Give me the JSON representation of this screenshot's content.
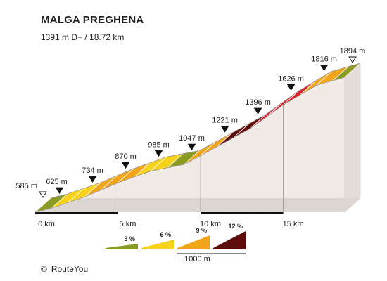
{
  "title": "MALGA PREGHENA",
  "subtitle": "1391 m D+ / 18.72 km",
  "credit": {
    "symbol": "©",
    "brand": "RouteYou"
  },
  "colors": {
    "grade_1": "#8a9a22",
    "grade_2": "#f6d21a",
    "grade_3": "#f0a51a",
    "grade_4": "#d91e2a",
    "grade_5": "#5e0c0c",
    "side_wall": "#f1ebe8",
    "bed": "#dcd6d3",
    "ink": "#111111"
  },
  "chart_data": {
    "type": "area",
    "title": "MALGA PREGHENA",
    "subtitle": "1391 m D+ / 18.72 km",
    "xlabel": "",
    "ylabel": "",
    "x_unit": "km",
    "y_unit": "m",
    "xlim": [
      0,
      18.72
    ],
    "ylim": [
      585,
      1894
    ],
    "segments": [
      {
        "from_km": 0,
        "to_km": 1,
        "grade": 3
      },
      {
        "from_km": 1,
        "to_km": 2,
        "grade": 6
      },
      {
        "from_km": 2,
        "to_km": 3,
        "grade": 6
      },
      {
        "from_km": 3,
        "to_km": 4,
        "grade": 9
      },
      {
        "from_km": 4,
        "to_km": 5,
        "grade": 9
      },
      {
        "from_km": 5,
        "to_km": 6,
        "grade": 9
      },
      {
        "from_km": 6,
        "to_km": 7,
        "grade": 6
      },
      {
        "from_km": 7,
        "to_km": 8,
        "grade": 6
      },
      {
        "from_km": 8,
        "to_km": 9,
        "grade": 3
      },
      {
        "from_km": 9,
        "to_km": 10,
        "grade": 9
      },
      {
        "from_km": 10,
        "to_km": 11,
        "grade": 9
      },
      {
        "from_km": 11,
        "to_km": 12,
        "grade": 12
      },
      {
        "from_km": 12,
        "to_km": 13,
        "grade": 12
      },
      {
        "from_km": 13,
        "to_km": 14,
        "grade": 12
      },
      {
        "from_km": 14,
        "to_km": 15,
        "grade": 12
      },
      {
        "from_km": 15,
        "to_km": 16,
        "grade": 12
      },
      {
        "from_km": 16,
        "to_km": 17,
        "grade": 9
      },
      {
        "from_km": 17,
        "to_km": 18,
        "grade": 9
      },
      {
        "from_km": 18,
        "to_km": 18.72,
        "grade": 3
      }
    ],
    "elevation_points": [
      {
        "km": 0,
        "elevation": 585,
        "label": "585 m",
        "marker": "open"
      },
      {
        "km": 1,
        "elevation": 625,
        "label": "625 m",
        "marker": "filled"
      },
      {
        "km": 3,
        "elevation": 734,
        "label": "734 m",
        "marker": "filled"
      },
      {
        "km": 5,
        "elevation": 870,
        "label": "870 m",
        "marker": "filled"
      },
      {
        "km": 7,
        "elevation": 985,
        "label": "985 m",
        "marker": "filled"
      },
      {
        "km": 9,
        "elevation": 1047,
        "label": "1047 m",
        "marker": "filled"
      },
      {
        "km": 11,
        "elevation": 1221,
        "label": "1221 m",
        "marker": "filled"
      },
      {
        "km": 13,
        "elevation": 1396,
        "label": "1396 m",
        "marker": "filled"
      },
      {
        "km": 15,
        "elevation": 1626,
        "label": "1626 m",
        "marker": "filled"
      },
      {
        "km": 17,
        "elevation": 1816,
        "label": "1816 m",
        "marker": "filled"
      },
      {
        "km": 18.72,
        "elevation": 1894,
        "label": "1894 m",
        "marker": "open"
      }
    ],
    "x_ticks": [
      {
        "km": 0,
        "label": "0 km"
      },
      {
        "km": 5,
        "label": "5 km"
      },
      {
        "km": 10,
        "label": "10 km"
      },
      {
        "km": 15,
        "label": "15 km"
      }
    ],
    "legend": {
      "placement": "bottom",
      "items": [
        {
          "grade": 3,
          "label": "3 %"
        },
        {
          "grade": 6,
          "label": "6 %"
        },
        {
          "grade": 9,
          "label": "9 %"
        },
        {
          "grade": 12,
          "label": "12 %"
        }
      ],
      "scale_label": "1000 m"
    }
  }
}
